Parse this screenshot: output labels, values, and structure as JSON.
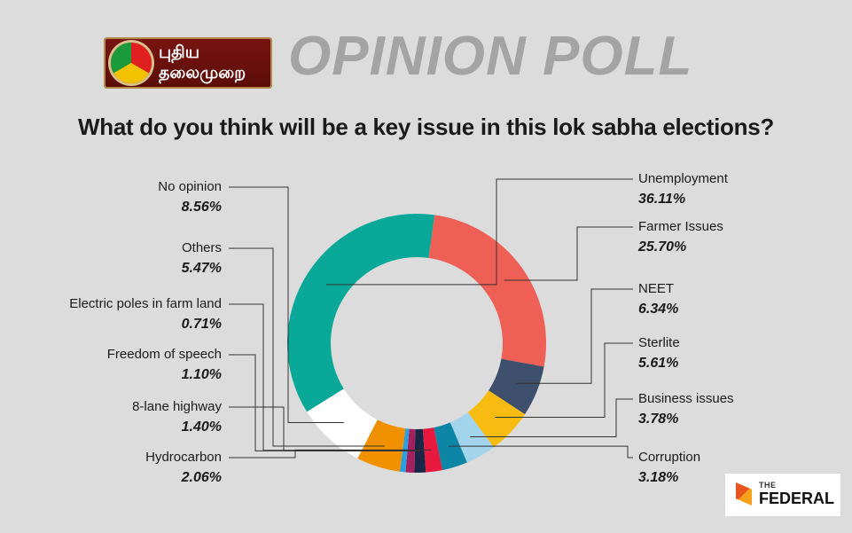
{
  "header": {
    "logo_line1": "புதிய",
    "logo_line2": "தலைமுறை",
    "title": "OPINION POLL",
    "question": "What do you think will be a key issue in this lok sabha elections?"
  },
  "brand": {
    "the": "THE",
    "name": "FEDERAL"
  },
  "chart_data": {
    "type": "pie",
    "donut": true,
    "slices": [
      {
        "label": "Unemployment",
        "value": 36.11,
        "display": "36.11%",
        "color": "#0aa898"
      },
      {
        "label": "Farmer Issues",
        "value": 25.7,
        "display": "25.70%",
        "color": "#ee5f55"
      },
      {
        "label": "NEET",
        "value": 6.34,
        "display": "6.34%",
        "color": "#3e4f6b"
      },
      {
        "label": "Sterlite",
        "value": 5.61,
        "display": "5.61%",
        "color": "#f7bb12"
      },
      {
        "label": "Business issues",
        "value": 3.78,
        "display": "3.78%",
        "color": "#a2d4ec"
      },
      {
        "label": "Corruption",
        "value": 3.18,
        "display": "3.18%",
        "color": "#0d86a6"
      },
      {
        "label": "Hydrocarbon",
        "value": 2.06,
        "display": "2.06%",
        "color": "#e8193e"
      },
      {
        "label": "8-lane highway",
        "value": 1.4,
        "display": "1.40%",
        "color": "#1a2645"
      },
      {
        "label": "Freedom of speech",
        "value": 1.1,
        "display": "1.10%",
        "color": "#a3205e"
      },
      {
        "label": "Electric poles in farm land",
        "value": 0.71,
        "display": "0.71%",
        "color": "#2aa0e0"
      },
      {
        "label": "Others",
        "value": 5.47,
        "display": "5.47%",
        "color": "#f29100"
      },
      {
        "label": "No opinion",
        "value": 8.56,
        "display": "8.56%",
        "color": "#ffffff"
      }
    ]
  }
}
